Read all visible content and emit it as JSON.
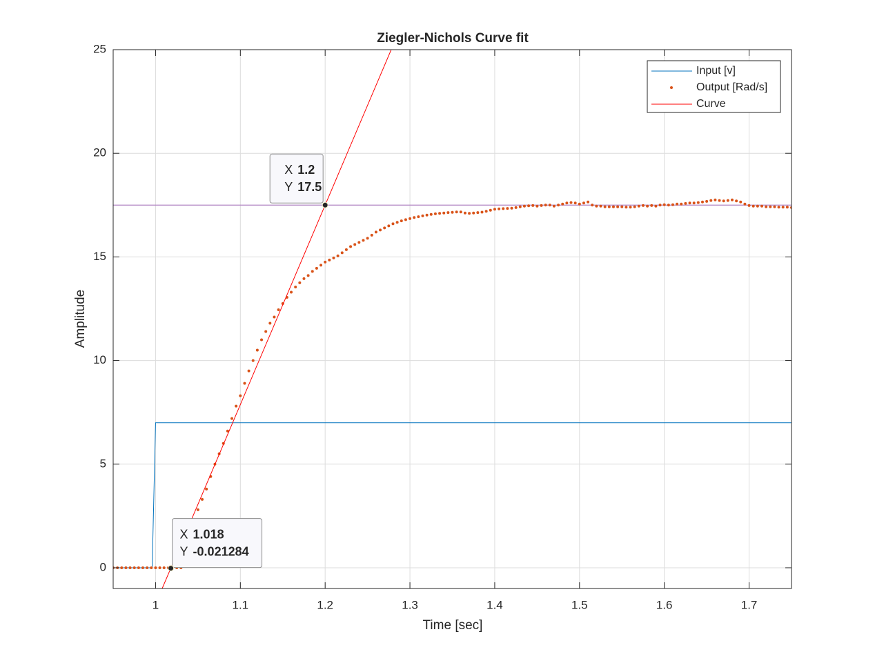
{
  "chart_data": {
    "type": "line",
    "title": "Ziegler-Nichols Curve fit",
    "x_label": "Time [sec]",
    "y_label": "Amplitude",
    "xlim": [
      0.95,
      1.75
    ],
    "ylim": [
      -1,
      25
    ],
    "xticks": [
      1,
      1.1,
      1.2,
      1.3,
      1.4,
      1.5,
      1.6,
      1.7
    ],
    "yticks": [
      0,
      5,
      10,
      15,
      20,
      25
    ],
    "grid": true,
    "legend": "northeast",
    "series": [
      {
        "name": "Input [v]",
        "color": "#0072BD",
        "style": "line",
        "x": [
          0.95,
          0.996,
          1,
          1.75
        ],
        "values": [
          0,
          0,
          7,
          7
        ]
      },
      {
        "name": "Output [Rad/s]",
        "color": "#D95319",
        "style": "dots",
        "x": [
          0.95,
          0.955,
          0.96,
          0.965,
          0.97,
          0.975,
          0.98,
          0.985,
          0.99,
          0.995,
          1,
          1.005,
          1.01,
          1.015,
          1.02,
          1.025,
          1.03,
          1.035,
          1.04,
          1.045,
          1.05,
          1.055,
          1.06,
          1.065,
          1.07,
          1.075,
          1.08,
          1.085,
          1.09,
          1.095,
          1.1,
          1.105,
          1.11,
          1.115,
          1.12,
          1.125,
          1.13,
          1.135,
          1.14,
          1.145,
          1.15,
          1.155,
          1.16,
          1.165,
          1.17,
          1.175,
          1.18,
          1.185,
          1.19,
          1.195,
          1.2,
          1.205,
          1.21,
          1.215,
          1.22,
          1.225,
          1.23,
          1.235,
          1.24,
          1.245,
          1.25,
          1.255,
          1.26,
          1.265,
          1.27,
          1.275,
          1.28,
          1.285,
          1.29,
          1.295,
          1.3,
          1.305,
          1.31,
          1.315,
          1.32,
          1.325,
          1.33,
          1.335,
          1.34,
          1.345,
          1.35,
          1.355,
          1.36,
          1.365,
          1.37,
          1.375,
          1.38,
          1.385,
          1.39,
          1.395,
          1.4,
          1.405,
          1.41,
          1.415,
          1.42,
          1.425,
          1.43,
          1.435,
          1.44,
          1.445,
          1.45,
          1.455,
          1.46,
          1.465,
          1.47,
          1.475,
          1.48,
          1.485,
          1.49,
          1.495,
          1.5,
          1.505,
          1.51,
          1.515,
          1.52,
          1.525,
          1.53,
          1.535,
          1.54,
          1.545,
          1.55,
          1.555,
          1.56,
          1.565,
          1.57,
          1.575,
          1.58,
          1.585,
          1.59,
          1.595,
          1.6,
          1.605,
          1.61,
          1.615,
          1.62,
          1.625,
          1.63,
          1.635,
          1.64,
          1.645,
          1.65,
          1.655,
          1.66,
          1.665,
          1.67,
          1.675,
          1.68,
          1.685,
          1.69,
          1.695,
          1.7,
          1.705,
          1.71,
          1.715,
          1.72,
          1.725,
          1.73,
          1.735,
          1.74,
          1.745,
          1.75
        ],
        "values": [
          0,
          0,
          0,
          0,
          0,
          0,
          0,
          0,
          0,
          0,
          0,
          0,
          0,
          0,
          0,
          0,
          0,
          0.3,
          1.1,
          2.0,
          2.8,
          3.3,
          3.8,
          4.4,
          5.0,
          5.5,
          6.0,
          6.6,
          7.2,
          7.8,
          8.3,
          8.9,
          9.5,
          10.0,
          10.5,
          11.0,
          11.4,
          11.8,
          12.1,
          12.45,
          12.75,
          13.05,
          13.3,
          13.55,
          13.75,
          13.95,
          14.1,
          14.3,
          14.45,
          14.6,
          14.75,
          14.85,
          14.95,
          15.05,
          15.2,
          15.35,
          15.5,
          15.6,
          15.7,
          15.8,
          15.9,
          16.05,
          16.2,
          16.3,
          16.4,
          16.5,
          16.6,
          16.67,
          16.74,
          16.8,
          16.85,
          16.9,
          16.94,
          16.98,
          17.02,
          17.05,
          17.08,
          17.1,
          17.12,
          17.14,
          17.15,
          17.17,
          17.17,
          17.12,
          17.1,
          17.12,
          17.14,
          17.16,
          17.2,
          17.25,
          17.3,
          17.32,
          17.33,
          17.34,
          17.35,
          17.38,
          17.42,
          17.45,
          17.47,
          17.48,
          17.45,
          17.48,
          17.5,
          17.5,
          17.45,
          17.5,
          17.55,
          17.6,
          17.62,
          17.6,
          17.55,
          17.6,
          17.65,
          17.5,
          17.45,
          17.45,
          17.42,
          17.42,
          17.42,
          17.42,
          17.42,
          17.4,
          17.4,
          17.42,
          17.45,
          17.48,
          17.45,
          17.48,
          17.45,
          17.5,
          17.52,
          17.5,
          17.52,
          17.55,
          17.55,
          17.58,
          17.6,
          17.6,
          17.62,
          17.65,
          17.68,
          17.72,
          17.75,
          17.72,
          17.7,
          17.72,
          17.75,
          17.7,
          17.65,
          17.55,
          17.48,
          17.45,
          17.45,
          17.45,
          17.42,
          17.42,
          17.42,
          17.4,
          17.4,
          17.4,
          17.38
        ]
      },
      {
        "name": "Curve",
        "color": "#FF0000",
        "style": "line",
        "x": [
          1.0078,
          1.2779
        ],
        "values": [
          -1,
          25
        ]
      }
    ],
    "hline": {
      "value": 17.5,
      "color": "#B58AC6"
    },
    "datatip_labels": [
      "X",
      "Y"
    ],
    "datatips": [
      {
        "x": 1.2,
        "y": 17.5
      },
      {
        "x": 1.018,
        "y": -0.021284
      }
    ]
  }
}
